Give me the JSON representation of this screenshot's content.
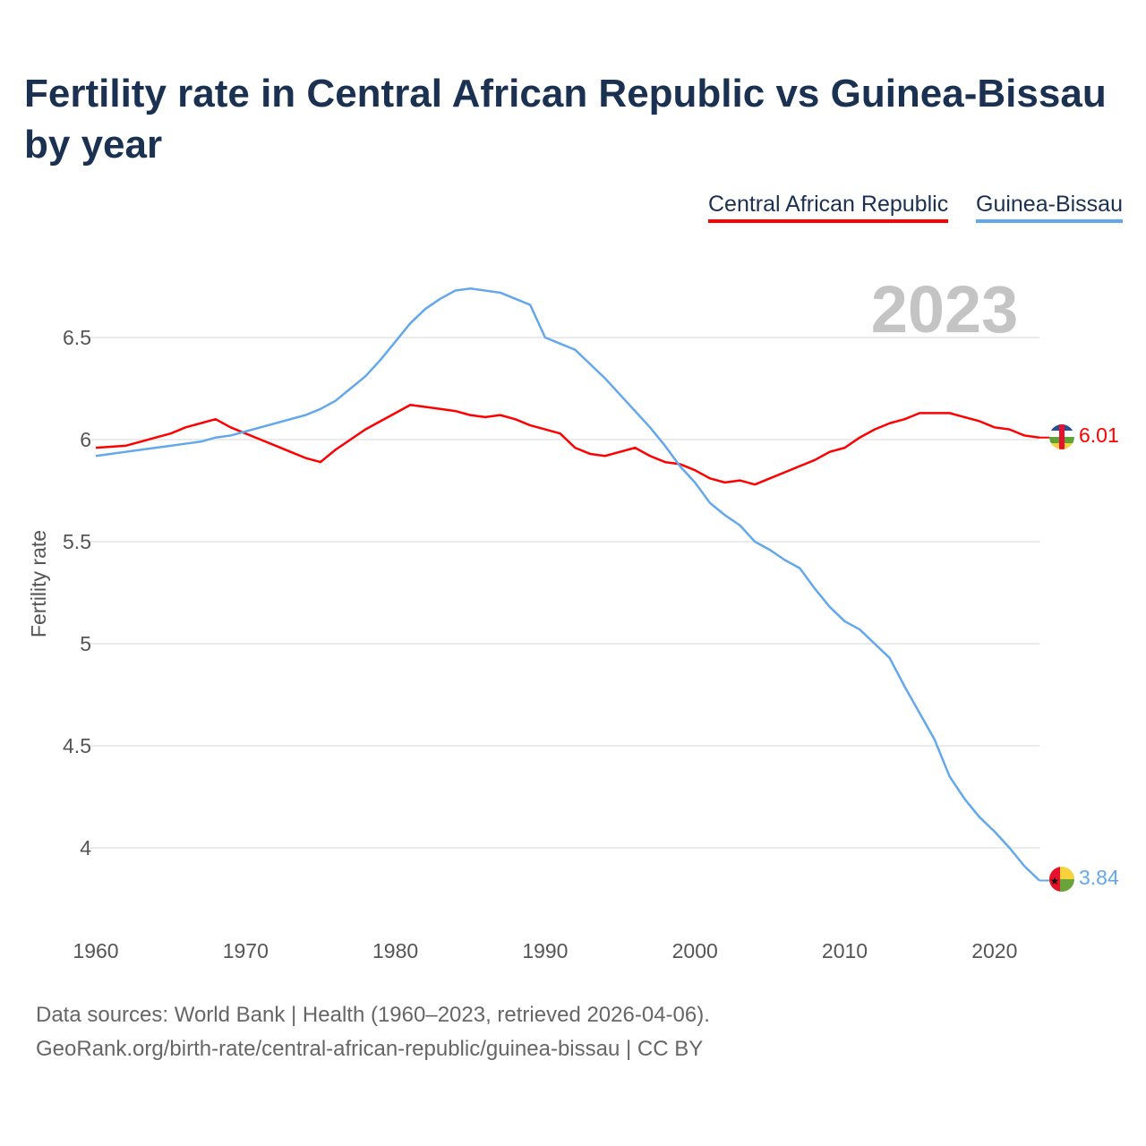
{
  "chart_data": {
    "type": "line",
    "title": "Fertility rate in Central African Republic vs Guinea-Bissau by year",
    "xlabel": "",
    "ylabel": "Fertility rate",
    "xlim": [
      1960,
      2023
    ],
    "ylim": [
      3.7,
      6.8
    ],
    "x_ticks": [
      "1960",
      "1970",
      "1980",
      "1990",
      "2000",
      "2010",
      "2020"
    ],
    "y_ticks": [
      "4",
      "4.5",
      "5",
      "5.5",
      "6",
      "6.5"
    ],
    "grid": true,
    "legend_placement": "top-right",
    "year_watermark": "2023",
    "series": [
      {
        "name": "Central African Republic",
        "color": "#ff0000",
        "end_label": "6.01",
        "values": [
          5.96,
          5.965,
          5.97,
          5.99,
          6.01,
          6.03,
          6.06,
          6.08,
          6.1,
          6.06,
          6.03,
          6.0,
          5.97,
          5.94,
          5.91,
          5.89,
          5.95,
          6.0,
          6.05,
          6.09,
          6.13,
          6.17,
          6.16,
          6.15,
          6.14,
          6.12,
          6.11,
          6.12,
          6.1,
          6.07,
          6.05,
          6.03,
          5.96,
          5.93,
          5.92,
          5.94,
          5.96,
          5.92,
          5.89,
          5.88,
          5.85,
          5.81,
          5.79,
          5.8,
          5.78,
          5.81,
          5.84,
          5.87,
          5.9,
          5.94,
          5.96,
          6.01,
          6.05,
          6.08,
          6.1,
          6.13,
          6.13,
          6.13,
          6.11,
          6.09,
          6.06,
          6.05,
          6.02,
          6.01
        ]
      },
      {
        "name": "Guinea-Bissau",
        "color": "#63a8ec",
        "end_label": "3.84",
        "values": [
          5.92,
          5.93,
          5.94,
          5.95,
          5.96,
          5.97,
          5.98,
          5.99,
          6.01,
          6.02,
          6.04,
          6.06,
          6.08,
          6.1,
          6.12,
          6.15,
          6.19,
          6.25,
          6.31,
          6.39,
          6.48,
          6.57,
          6.64,
          6.69,
          6.73,
          6.74,
          6.73,
          6.72,
          6.69,
          6.66,
          6.5,
          6.47,
          6.44,
          6.37,
          6.3,
          6.22,
          6.14,
          6.06,
          5.97,
          5.87,
          5.79,
          5.69,
          5.63,
          5.58,
          5.5,
          5.46,
          5.41,
          5.37,
          5.27,
          5.18,
          5.11,
          5.07,
          5.0,
          4.93,
          4.79,
          4.66,
          4.53,
          4.35,
          4.24,
          4.15,
          4.08,
          4.0,
          3.91,
          3.84
        ]
      }
    ]
  },
  "footer": {
    "line1": "Data sources: World Bank | Health (1960–2023, retrieved 2026-04-06).",
    "line2": "GeoRank.org/birth-rate/central-african-republic/guinea-bissau | CC BY"
  }
}
